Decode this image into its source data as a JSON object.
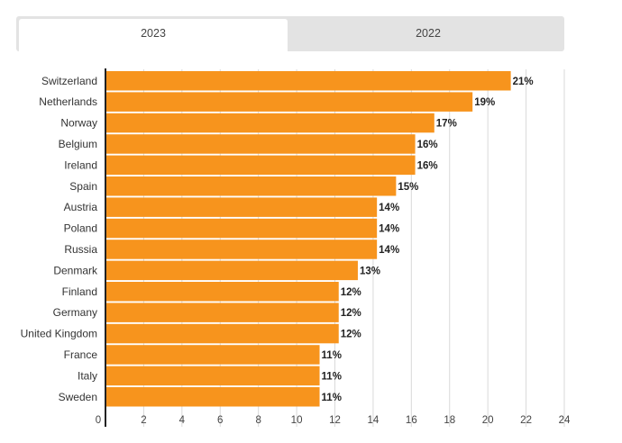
{
  "tabs": {
    "active_label": "2023",
    "inactive_label": "2022"
  },
  "colors": {
    "bar": "#f7941d",
    "grid": "#d9d9d9",
    "axis": "#222222"
  },
  "chart_data": {
    "type": "bar",
    "orientation": "horizontal",
    "categories": [
      "Switzerland",
      "Netherlands",
      "Norway",
      "Belgium",
      "Ireland",
      "Spain",
      "Austria",
      "Poland",
      "Russia",
      "Denmark",
      "Finland",
      "Germany",
      "United Kingdom",
      "France",
      "Italy",
      "Sweden"
    ],
    "values": [
      21.2,
      19.2,
      17.2,
      16.2,
      16.2,
      15.2,
      14.2,
      14.2,
      14.2,
      13.2,
      12.2,
      12.2,
      12.2,
      11.2,
      11.2,
      11.2
    ],
    "data_labels": [
      "21%",
      "19%",
      "17%",
      "16%",
      "16%",
      "15%",
      "14%",
      "14%",
      "14%",
      "13%",
      "12%",
      "12%",
      "12%",
      "11%",
      "11%",
      "11%"
    ],
    "x_ticks": [
      0,
      2,
      4,
      6,
      8,
      10,
      12,
      14,
      16,
      18,
      20,
      22,
      24
    ],
    "xlim": [
      0,
      24
    ],
    "grid": true
  }
}
